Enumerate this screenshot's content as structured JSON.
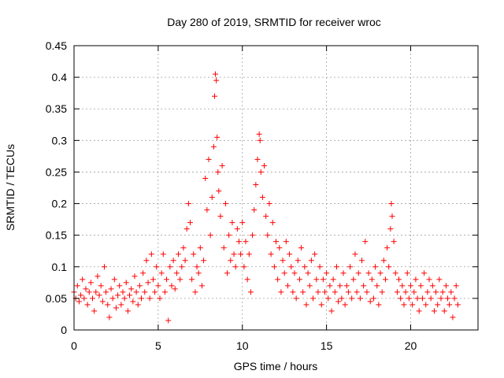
{
  "chart_data": {
    "type": "scatter",
    "title": "Day 280 of 2019, SRMTID for receiver wroc",
    "xlabel": "GPS time / hours",
    "ylabel": "SRMTID / TECUs",
    "xlim": [
      0,
      24
    ],
    "ylim": [
      0,
      0.45
    ],
    "xticks": [
      0,
      5,
      10,
      15,
      20
    ],
    "xtick_labels": [
      "0",
      "5",
      "10",
      "15",
      "20"
    ],
    "yticks": [
      0,
      0.05,
      0.1,
      0.15,
      0.2,
      0.25,
      0.3,
      0.35,
      0.4,
      0.45
    ],
    "ytick_labels": [
      "0",
      "0.05",
      "0.1",
      "0.15",
      "0.2",
      "0.25",
      "0.3",
      "0.35",
      "0.4",
      "0.45"
    ],
    "grid": true,
    "marker": "+",
    "color": "#ff0000",
    "series": [
      {
        "name": "SRMTID",
        "points": [
          [
            0.0,
            0.06
          ],
          [
            0.1,
            0.05
          ],
          [
            0.2,
            0.07
          ],
          [
            0.3,
            0.045
          ],
          [
            0.4,
            0.055
          ],
          [
            0.5,
            0.08
          ],
          [
            0.6,
            0.05
          ],
          [
            0.7,
            0.065
          ],
          [
            0.8,
            0.04
          ],
          [
            0.9,
            0.06
          ],
          [
            1.0,
            0.075
          ],
          [
            1.1,
            0.05
          ],
          [
            1.2,
            0.03
          ],
          [
            1.3,
            0.06
          ],
          [
            1.4,
            0.085
          ],
          [
            1.5,
            0.055
          ],
          [
            1.6,
            0.07
          ],
          [
            1.7,
            0.045
          ],
          [
            1.8,
            0.1
          ],
          [
            1.9,
            0.06
          ],
          [
            2.0,
            0.04
          ],
          [
            2.1,
            0.02
          ],
          [
            2.2,
            0.065
          ],
          [
            2.3,
            0.05
          ],
          [
            2.4,
            0.08
          ],
          [
            2.5,
            0.035
          ],
          [
            2.6,
            0.055
          ],
          [
            2.7,
            0.07
          ],
          [
            2.8,
            0.04
          ],
          [
            2.9,
            0.06
          ],
          [
            3.0,
            0.05
          ],
          [
            3.1,
            0.075
          ],
          [
            3.2,
            0.03
          ],
          [
            3.3,
            0.055
          ],
          [
            3.4,
            0.065
          ],
          [
            3.5,
            0.045
          ],
          [
            3.6,
            0.085
          ],
          [
            3.7,
            0.06
          ],
          [
            3.8,
            0.04
          ],
          [
            3.9,
            0.07
          ],
          [
            4.0,
            0.05
          ],
          [
            4.1,
            0.09
          ],
          [
            4.2,
            0.06
          ],
          [
            4.3,
            0.11
          ],
          [
            4.4,
            0.075
          ],
          [
            4.5,
            0.05
          ],
          [
            4.6,
            0.12
          ],
          [
            4.7,
            0.08
          ],
          [
            4.8,
            0.06
          ],
          [
            4.9,
            0.1
          ],
          [
            5.0,
            0.07
          ],
          [
            5.1,
            0.05
          ],
          [
            5.2,
            0.09
          ],
          [
            5.3,
            0.12
          ],
          [
            5.4,
            0.06
          ],
          [
            5.5,
            0.08
          ],
          [
            5.6,
            0.015
          ],
          [
            5.7,
            0.1
          ],
          [
            5.8,
            0.07
          ],
          [
            5.9,
            0.11
          ],
          [
            6.0,
            0.065
          ],
          [
            6.1,
            0.09
          ],
          [
            6.2,
            0.12
          ],
          [
            6.3,
            0.08
          ],
          [
            6.4,
            0.1
          ],
          [
            6.5,
            0.13
          ],
          [
            6.6,
            0.11
          ],
          [
            6.7,
            0.16
          ],
          [
            6.8,
            0.2
          ],
          [
            6.9,
            0.17
          ],
          [
            7.0,
            0.08
          ],
          [
            7.1,
            0.12
          ],
          [
            7.2,
            0.06
          ],
          [
            7.3,
            0.1
          ],
          [
            7.4,
            0.09
          ],
          [
            7.5,
            0.13
          ],
          [
            7.6,
            0.07
          ],
          [
            7.7,
            0.11
          ],
          [
            7.8,
            0.24
          ],
          [
            7.9,
            0.19
          ],
          [
            8.0,
            0.27
          ],
          [
            8.1,
            0.15
          ],
          [
            8.2,
            0.21
          ],
          [
            8.3,
            0.29
          ],
          [
            8.35,
            0.37
          ],
          [
            8.4,
            0.405
          ],
          [
            8.45,
            0.395
          ],
          [
            8.5,
            0.305
          ],
          [
            8.55,
            0.25
          ],
          [
            8.6,
            0.22
          ],
          [
            8.7,
            0.18
          ],
          [
            8.8,
            0.26
          ],
          [
            8.9,
            0.13
          ],
          [
            9.0,
            0.2
          ],
          [
            9.1,
            0.09
          ],
          [
            9.2,
            0.15
          ],
          [
            9.3,
            0.11
          ],
          [
            9.4,
            0.17
          ],
          [
            9.5,
            0.12
          ],
          [
            9.6,
            0.1
          ],
          [
            9.7,
            0.16
          ],
          [
            9.8,
            0.14
          ],
          [
            9.9,
            0.12
          ],
          [
            10.0,
            0.17
          ],
          [
            10.1,
            0.1
          ],
          [
            10.2,
            0.14
          ],
          [
            10.3,
            0.08
          ],
          [
            10.4,
            0.12
          ],
          [
            10.5,
            0.06
          ],
          [
            10.6,
            0.15
          ],
          [
            10.7,
            0.19
          ],
          [
            10.8,
            0.23
          ],
          [
            10.9,
            0.27
          ],
          [
            11.0,
            0.31
          ],
          [
            11.05,
            0.3
          ],
          [
            11.1,
            0.25
          ],
          [
            11.2,
            0.21
          ],
          [
            11.3,
            0.26
          ],
          [
            11.4,
            0.18
          ],
          [
            11.5,
            0.15
          ],
          [
            11.6,
            0.2
          ],
          [
            11.7,
            0.12
          ],
          [
            11.8,
            0.17
          ],
          [
            11.9,
            0.1
          ],
          [
            12.0,
            0.14
          ],
          [
            12.1,
            0.08
          ],
          [
            12.2,
            0.13
          ],
          [
            12.3,
            0.06
          ],
          [
            12.4,
            0.11
          ],
          [
            12.5,
            0.09
          ],
          [
            12.6,
            0.14
          ],
          [
            12.7,
            0.07
          ],
          [
            12.8,
            0.12
          ],
          [
            12.9,
            0.1
          ],
          [
            13.0,
            0.06
          ],
          [
            13.1,
            0.09
          ],
          [
            13.2,
            0.05
          ],
          [
            13.3,
            0.11
          ],
          [
            13.4,
            0.08
          ],
          [
            13.5,
            0.13
          ],
          [
            13.6,
            0.06
          ],
          [
            13.7,
            0.1
          ],
          [
            13.8,
            0.04
          ],
          [
            13.9,
            0.09
          ],
          [
            14.0,
            0.07
          ],
          [
            14.1,
            0.11
          ],
          [
            14.2,
            0.05
          ],
          [
            14.3,
            0.12
          ],
          [
            14.4,
            0.08
          ],
          [
            14.5,
            0.06
          ],
          [
            14.6,
            0.1
          ],
          [
            14.7,
            0.04
          ],
          [
            14.8,
            0.08
          ],
          [
            14.9,
            0.06
          ],
          [
            15.0,
            0.09
          ],
          [
            15.1,
            0.05
          ],
          [
            15.2,
            0.07
          ],
          [
            15.3,
            0.03
          ],
          [
            15.4,
            0.08
          ],
          [
            15.5,
            0.06
          ],
          [
            15.6,
            0.1
          ],
          [
            15.7,
            0.045
          ],
          [
            15.8,
            0.07
          ],
          [
            15.9,
            0.05
          ],
          [
            16.0,
            0.09
          ],
          [
            16.1,
            0.04
          ],
          [
            16.2,
            0.07
          ],
          [
            16.3,
            0.06
          ],
          [
            16.4,
            0.1
          ],
          [
            16.5,
            0.05
          ],
          [
            16.6,
            0.08
          ],
          [
            16.7,
            0.12
          ],
          [
            16.8,
            0.06
          ],
          [
            16.9,
            0.09
          ],
          [
            17.0,
            0.05
          ],
          [
            17.1,
            0.11
          ],
          [
            17.2,
            0.07
          ],
          [
            17.3,
            0.14
          ],
          [
            17.4,
            0.06
          ],
          [
            17.5,
            0.09
          ],
          [
            17.6,
            0.045
          ],
          [
            17.7,
            0.08
          ],
          [
            17.8,
            0.05
          ],
          [
            17.9,
            0.1
          ],
          [
            18.0,
            0.07
          ],
          [
            18.1,
            0.04
          ],
          [
            18.2,
            0.09
          ],
          [
            18.3,
            0.06
          ],
          [
            18.4,
            0.11
          ],
          [
            18.5,
            0.08
          ],
          [
            18.6,
            0.13
          ],
          [
            18.7,
            0.1
          ],
          [
            18.8,
            0.16
          ],
          [
            18.85,
            0.2
          ],
          [
            18.9,
            0.18
          ],
          [
            19.0,
            0.14
          ],
          [
            19.1,
            0.09
          ],
          [
            19.2,
            0.06
          ],
          [
            19.3,
            0.08
          ],
          [
            19.4,
            0.05
          ],
          [
            19.5,
            0.07
          ],
          [
            19.6,
            0.04
          ],
          [
            19.7,
            0.06
          ],
          [
            19.8,
            0.09
          ],
          [
            19.9,
            0.05
          ],
          [
            20.0,
            0.07
          ],
          [
            20.1,
            0.04
          ],
          [
            20.2,
            0.06
          ],
          [
            20.3,
            0.08
          ],
          [
            20.4,
            0.05
          ],
          [
            20.5,
            0.03
          ],
          [
            20.6,
            0.07
          ],
          [
            20.7,
            0.05
          ],
          [
            20.8,
            0.09
          ],
          [
            20.9,
            0.04
          ],
          [
            21.0,
            0.06
          ],
          [
            21.1,
            0.08
          ],
          [
            21.2,
            0.05
          ],
          [
            21.3,
            0.07
          ],
          [
            21.4,
            0.03
          ],
          [
            21.5,
            0.06
          ],
          [
            21.6,
            0.04
          ],
          [
            21.7,
            0.08
          ],
          [
            21.8,
            0.05
          ],
          [
            21.9,
            0.06
          ],
          [
            22.0,
            0.03
          ],
          [
            22.1,
            0.07
          ],
          [
            22.2,
            0.05
          ],
          [
            22.3,
            0.04
          ],
          [
            22.4,
            0.06
          ],
          [
            22.5,
            0.02
          ],
          [
            22.6,
            0.05
          ],
          [
            22.7,
            0.07
          ],
          [
            22.8,
            0.04
          ]
        ]
      }
    ]
  }
}
